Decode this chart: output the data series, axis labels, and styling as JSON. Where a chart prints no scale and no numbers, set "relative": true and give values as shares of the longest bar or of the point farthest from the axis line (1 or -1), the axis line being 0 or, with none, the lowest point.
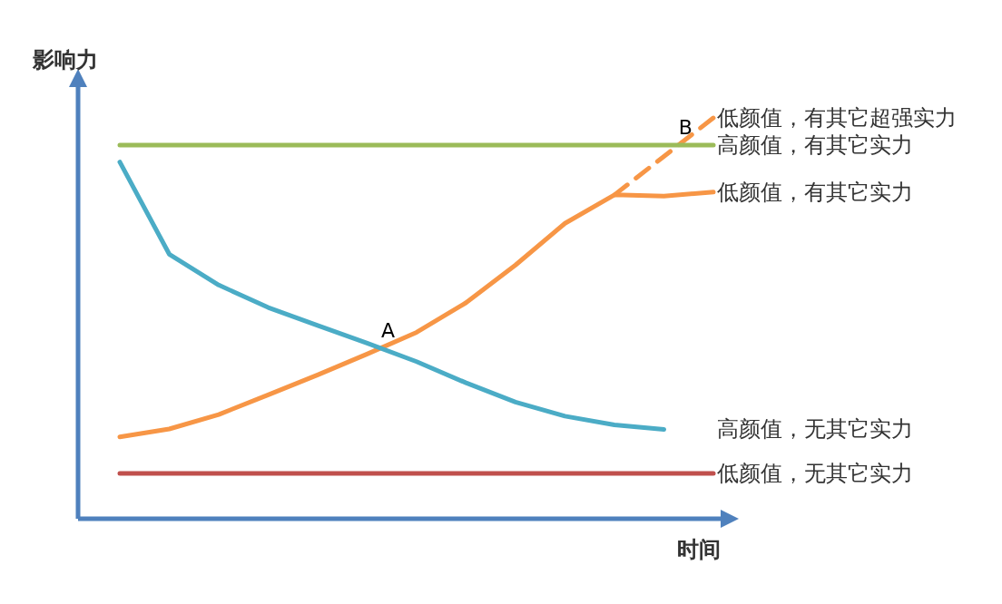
{
  "chart_data": {
    "type": "line",
    "relative": true,
    "xlabel": "时间",
    "ylabel": "影响力",
    "categories": [
      null,
      null,
      null,
      null,
      null,
      null,
      null,
      null,
      null,
      null,
      null,
      null,
      null
    ],
    "annotations": [
      {
        "text": "A",
        "y": 0.426
      },
      {
        "text": "B",
        "y": 0.932
      }
    ],
    "series": [
      {
        "name": "低颜值，有其它超强实力",
        "color": "#f79646",
        "line_style": "dashed",
        "values": [
          null,
          null,
          null,
          null,
          null,
          null,
          null,
          null,
          null,
          null,
          0.808,
          0.904,
          1.0
        ]
      },
      {
        "name": "高颜值，有其它实力",
        "color": "#9bbb59",
        "values": [
          0.932,
          0.932,
          0.932,
          0.932,
          0.932,
          0.932,
          0.932,
          0.932,
          0.932,
          0.932,
          0.932,
          0.932,
          0.932
        ]
      },
      {
        "name": "低颜值，有其它实力",
        "color": "#f79646",
        "values": [
          0.204,
          0.224,
          0.26,
          0.309,
          0.359,
          0.411,
          0.465,
          0.539,
          0.633,
          0.737,
          0.808,
          0.805,
          0.815
        ]
      },
      {
        "name": "高颜值，无其它实力",
        "color": "#4bacc6",
        "values": [
          0.89,
          0.66,
          0.583,
          0.527,
          0.482,
          0.438,
          0.392,
          0.339,
          0.291,
          0.256,
          0.234,
          0.223,
          null
        ]
      },
      {
        "name": "低颜值，无其它实力",
        "color": "#c0504d",
        "values": [
          0.113,
          0.113,
          0.113,
          0.113,
          0.113,
          0.113,
          0.113,
          0.113,
          0.113,
          0.113,
          0.113,
          0.113,
          0.113
        ]
      }
    ]
  }
}
